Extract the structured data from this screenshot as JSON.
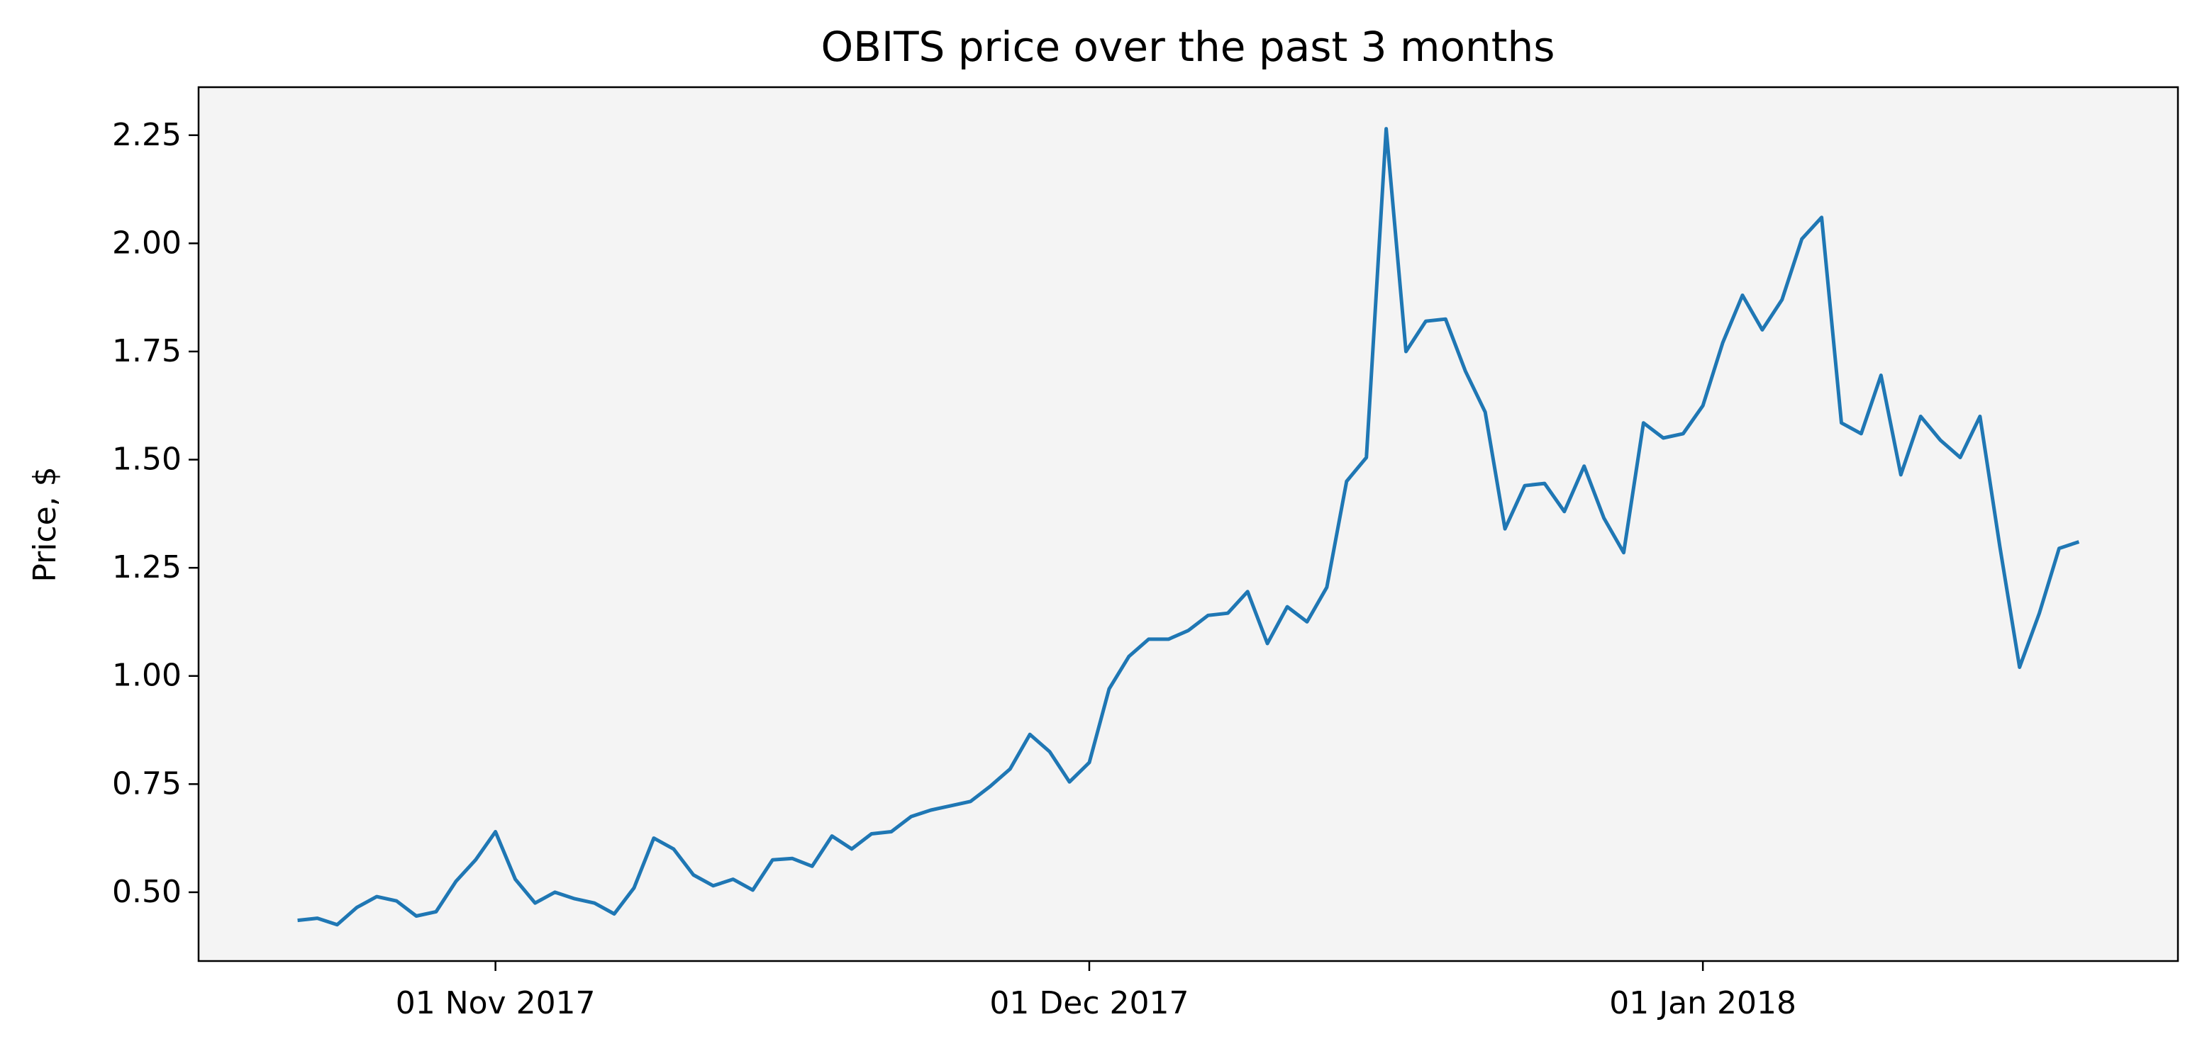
{
  "chart_data": {
    "type": "line",
    "title": "OBITS price over the past 3 months",
    "y_label": "Price, $",
    "x": [
      "2017-10-22",
      "2017-10-23",
      "2017-10-24",
      "2017-10-25",
      "2017-10-26",
      "2017-10-27",
      "2017-10-28",
      "2017-10-29",
      "2017-10-30",
      "2017-10-31",
      "2017-11-01",
      "2017-11-02",
      "2017-11-03",
      "2017-11-04",
      "2017-11-05",
      "2017-11-06",
      "2017-11-07",
      "2017-11-08",
      "2017-11-09",
      "2017-11-10",
      "2017-11-11",
      "2017-11-12",
      "2017-11-13",
      "2017-11-14",
      "2017-11-15",
      "2017-11-16",
      "2017-11-17",
      "2017-11-18",
      "2017-11-19",
      "2017-11-20",
      "2017-11-21",
      "2017-11-22",
      "2017-11-23",
      "2017-11-24",
      "2017-11-25",
      "2017-11-26",
      "2017-11-27",
      "2017-11-28",
      "2017-11-29",
      "2017-11-30",
      "2017-12-01",
      "2017-12-02",
      "2017-12-03",
      "2017-12-04",
      "2017-12-05",
      "2017-12-06",
      "2017-12-07",
      "2017-12-08",
      "2017-12-09",
      "2017-12-10",
      "2017-12-11",
      "2017-12-12",
      "2017-12-13",
      "2017-12-14",
      "2017-12-15",
      "2017-12-16",
      "2017-12-17",
      "2017-12-18",
      "2017-12-19",
      "2017-12-20",
      "2017-12-21",
      "2017-12-22",
      "2017-12-23",
      "2017-12-24",
      "2017-12-25",
      "2017-12-26",
      "2017-12-27",
      "2017-12-28",
      "2017-12-29",
      "2017-12-30",
      "2017-12-31",
      "2018-01-01",
      "2018-01-02",
      "2018-01-03",
      "2018-01-04",
      "2018-01-05",
      "2018-01-06",
      "2018-01-07",
      "2018-01-08",
      "2018-01-09",
      "2018-01-10",
      "2018-01-11",
      "2018-01-12",
      "2018-01-13",
      "2018-01-14",
      "2018-01-15",
      "2018-01-16",
      "2018-01-17",
      "2018-01-18",
      "2018-01-19",
      "2018-01-20"
    ],
    "series": [
      {
        "name": "OBITS",
        "color": "#1f77b4",
        "values": [
          0.435,
          0.44,
          0.425,
          0.465,
          0.49,
          0.48,
          0.445,
          0.455,
          0.525,
          0.575,
          0.64,
          0.53,
          0.475,
          0.5,
          0.485,
          0.475,
          0.45,
          0.51,
          0.625,
          0.6,
          0.54,
          0.515,
          0.53,
          0.505,
          0.575,
          0.578,
          0.56,
          0.63,
          0.6,
          0.635,
          0.64,
          0.675,
          0.69,
          0.7,
          0.71,
          0.745,
          0.785,
          0.865,
          0.825,
          0.755,
          0.8,
          0.97,
          1.045,
          1.085,
          1.085,
          1.105,
          1.14,
          1.145,
          1.195,
          1.075,
          1.16,
          1.125,
          1.205,
          1.45,
          1.505,
          2.265,
          1.75,
          1.82,
          1.825,
          1.705,
          1.61,
          1.34,
          1.44,
          1.445,
          1.38,
          1.485,
          1.365,
          1.285,
          1.585,
          1.55,
          1.56,
          1.625,
          1.77,
          1.88,
          1.8,
          1.87,
          2.01,
          2.06,
          1.585,
          1.56,
          1.695,
          1.465,
          1.6,
          1.545,
          1.505,
          1.6,
          1.3,
          1.02,
          1.145,
          1.295,
          1.31
        ]
      }
    ],
    "xlim": [
      "2017-10-17",
      "2018-01-25"
    ],
    "xticks": [
      {
        "value": "2017-11-01",
        "label": "01 Nov 2017"
      },
      {
        "value": "2017-12-01",
        "label": "01 Dec 2017"
      },
      {
        "value": "2018-01-01",
        "label": "01 Jan 2018"
      }
    ],
    "ylim": [
      0.341,
      2.361
    ],
    "yticks": [
      {
        "value": 0.5,
        "label": "0.50"
      },
      0.75,
      {
        "value": 1.0,
        "label": "1.00"
      },
      1.25,
      {
        "value": 1.5,
        "label": "1.50"
      },
      1.75,
      {
        "value": 2.0,
        "label": "2.00"
      },
      2.25
    ],
    "background": "#f4f4f4",
    "grid": false
  }
}
